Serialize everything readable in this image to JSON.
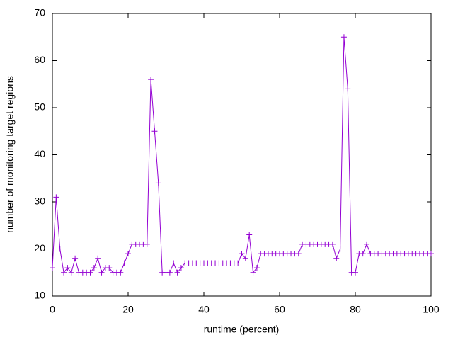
{
  "chart_data": {
    "type": "line",
    "xlabel": "runtime (percent)",
    "ylabel": "number of monitoring target regions",
    "x": [
      0,
      1,
      2,
      3,
      4,
      5,
      6,
      7,
      8,
      9,
      10,
      11,
      12,
      13,
      14,
      15,
      16,
      17,
      18,
      19,
      20,
      21,
      22,
      23,
      24,
      25,
      26,
      27,
      28,
      29,
      30,
      31,
      32,
      33,
      34,
      35,
      36,
      37,
      38,
      39,
      40,
      41,
      42,
      43,
      44,
      45,
      46,
      47,
      48,
      49,
      50,
      51,
      52,
      53,
      54,
      55,
      56,
      57,
      58,
      59,
      60,
      61,
      62,
      63,
      64,
      65,
      66,
      67,
      68,
      69,
      70,
      71,
      72,
      73,
      74,
      75,
      76,
      77,
      78,
      79,
      80,
      81,
      82,
      83,
      84,
      85,
      86,
      87,
      88,
      89,
      90,
      91,
      92,
      93,
      94,
      95,
      96,
      97,
      98,
      99,
      100
    ],
    "values": [
      16,
      31,
      20,
      15,
      16,
      15,
      18,
      15,
      15,
      15,
      15,
      16,
      18,
      15,
      16,
      16,
      15,
      15,
      15,
      17,
      19,
      21,
      21,
      21,
      21,
      21,
      56,
      45,
      34,
      15,
      15,
      15,
      17,
      15,
      16,
      17,
      17,
      17,
      17,
      17,
      17,
      17,
      17,
      17,
      17,
      17,
      17,
      17,
      17,
      17,
      19,
      18,
      23,
      15,
      16,
      19,
      19,
      19,
      19,
      19,
      19,
      19,
      19,
      19,
      19,
      19,
      21,
      21,
      21,
      21,
      21,
      21,
      21,
      21,
      21,
      18,
      20,
      65,
      54,
      15,
      15,
      19,
      19,
      21,
      19,
      19,
      19,
      19,
      19,
      19,
      19,
      19,
      19,
      19,
      19,
      19,
      19,
      19,
      19,
      19,
      19
    ],
    "color": "#9400d3",
    "xlim": [
      0,
      100
    ],
    "xticks": [
      0,
      20,
      40,
      60,
      80,
      100
    ],
    "ylim": [
      10,
      70
    ],
    "yticks": [
      10,
      20,
      30,
      40,
      50,
      60,
      70
    ],
    "grid": false
  }
}
